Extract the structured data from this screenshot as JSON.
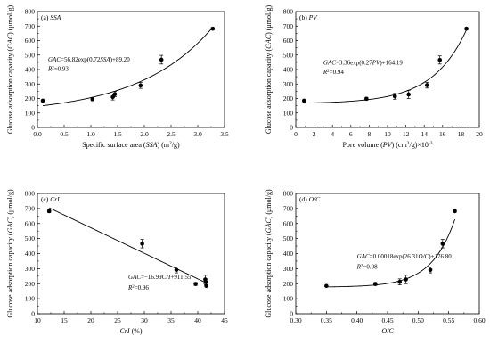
{
  "chart_data": [
    {
      "type": "scatter",
      "panel_label": "(a) SSA",
      "xlabel": "Specific surface area (SSA) (m²/g)",
      "ylabel": "Glucose adsorption capacity (GAC) (μmol/g)",
      "xlim": [
        0,
        3.5
      ],
      "ylim": [
        0,
        800
      ],
      "xticks": [
        "0.0",
        "0.5",
        "1.0",
        "1.5",
        "2.0",
        "2.5",
        "3.0",
        "3.5"
      ],
      "yticks": [
        "0",
        "100",
        "200",
        "300",
        "400",
        "500",
        "600",
        "700",
        "800"
      ],
      "points": [
        {
          "x": 0.1,
          "y": 185,
          "err": 0
        },
        {
          "x": 1.03,
          "y": 195,
          "err": 10
        },
        {
          "x": 1.41,
          "y": 210,
          "err": 20
        },
        {
          "x": 1.45,
          "y": 230,
          "err": 18
        },
        {
          "x": 1.93,
          "y": 290,
          "err": 20
        },
        {
          "x": 2.32,
          "y": 468,
          "err": 30
        },
        {
          "x": 3.28,
          "y": 682,
          "err": 8
        }
      ],
      "fit": {
        "kind": "exp",
        "a": 56.82,
        "b": 0.72,
        "c": 89.2,
        "x_range": [
          0.1,
          3.28
        ]
      },
      "equation": "GAC=56.82exp(0.72SSA)+89.20",
      "r2": "R²=0.93"
    },
    {
      "type": "scatter",
      "panel_label": "(b) PV",
      "xlabel": "Pore volume (PV) (cm³/g)×10⁻³",
      "ylabel": "Glucose adsorption capacity (GAC) (μmol/g)",
      "xlim": [
        0,
        20
      ],
      "ylim": [
        0,
        800
      ],
      "xticks": [
        "0",
        "2",
        "4",
        "6",
        "8",
        "10",
        "12",
        "14",
        "16",
        "18",
        "20"
      ],
      "yticks": [
        "0",
        "100",
        "200",
        "300",
        "400",
        "500",
        "600",
        "700",
        "800"
      ],
      "points": [
        {
          "x": 0.9,
          "y": 185,
          "err": 0
        },
        {
          "x": 7.7,
          "y": 198,
          "err": 10
        },
        {
          "x": 10.8,
          "y": 215,
          "err": 20
        },
        {
          "x": 12.3,
          "y": 228,
          "err": 28
        },
        {
          "x": 14.3,
          "y": 292,
          "err": 20
        },
        {
          "x": 15.7,
          "y": 466,
          "err": 28
        },
        {
          "x": 18.6,
          "y": 682,
          "err": 8
        }
      ],
      "fit": {
        "kind": "exp",
        "a": 3.36,
        "b": 0.27,
        "c": 164.19,
        "x_range": [
          0.9,
          18.6
        ]
      },
      "equation": "GAC=3.36exp(0.27PV)+164.19",
      "r2": "R²=0.94"
    },
    {
      "type": "scatter",
      "panel_label": "(c) CrI",
      "xlabel": "CrI (%)",
      "ylabel": "Glucose adsorption capacity (GAC) (μmol/g)",
      "xlim": [
        10,
        45
      ],
      "ylim": [
        0,
        800
      ],
      "xticks": [
        "10",
        "15",
        "20",
        "25",
        "30",
        "35",
        "40",
        "45"
      ],
      "yticks": [
        "0",
        "100",
        "200",
        "300",
        "400",
        "500",
        "600",
        "700",
        "800"
      ],
      "points": [
        {
          "x": 12.2,
          "y": 682,
          "err": 10
        },
        {
          "x": 29.6,
          "y": 466,
          "err": 28
        },
        {
          "x": 36.0,
          "y": 292,
          "err": 20
        },
        {
          "x": 39.6,
          "y": 198,
          "err": 10
        },
        {
          "x": 41.4,
          "y": 228,
          "err": 28
        },
        {
          "x": 41.5,
          "y": 212,
          "err": 20
        },
        {
          "x": 41.6,
          "y": 185,
          "err": 0
        }
      ],
      "fit": {
        "kind": "linear",
        "m": -16.99,
        "c": 911.55,
        "x_range": [
          12.2,
          41.6
        ]
      },
      "equation": "GAC=−16.99CrI+911.55",
      "r2": "R²=0.96"
    },
    {
      "type": "scatter",
      "panel_label": "(d) O/C",
      "xlabel": "O/C",
      "ylabel": "Glucose adsorption capacity (GAC) (μmol/g)",
      "xlim": [
        0.3,
        0.6
      ],
      "ylim": [
        0,
        800
      ],
      "xticks": [
        "0.30",
        "0.35",
        "0.40",
        "0.45",
        "0.50",
        "0.55",
        "0.60"
      ],
      "yticks": [
        "0",
        "100",
        "200",
        "300",
        "400",
        "500",
        "600",
        "700",
        "800"
      ],
      "points": [
        {
          "x": 0.35,
          "y": 185,
          "err": 0
        },
        {
          "x": 0.43,
          "y": 198,
          "err": 10
        },
        {
          "x": 0.47,
          "y": 212,
          "err": 20
        },
        {
          "x": 0.48,
          "y": 228,
          "err": 28
        },
        {
          "x": 0.52,
          "y": 292,
          "err": 20
        },
        {
          "x": 0.54,
          "y": 466,
          "err": 28
        },
        {
          "x": 0.56,
          "y": 682,
          "err": 8
        }
      ],
      "fit": {
        "kind": "exp",
        "a": 0.00018,
        "b": 26.31,
        "c": 176.8,
        "x_range": [
          0.35,
          0.56
        ]
      },
      "equation": "GAC=0.00018exp(26.31O/C)+176.80",
      "r2": "R²=0.98"
    }
  ]
}
